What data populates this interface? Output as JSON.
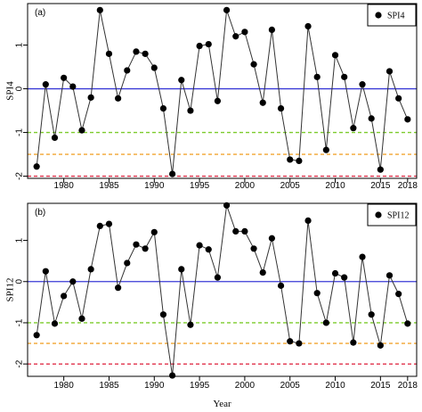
{
  "chart_data": [
    {
      "type": "line",
      "panel": "(a)",
      "ylabel": "SPI4",
      "xlabel": "",
      "legend": "SPI4",
      "legend_position": "top-right",
      "x_ticks": [
        1980,
        1985,
        1990,
        1995,
        2000,
        2005,
        2010,
        2015,
        2018
      ],
      "y_ticks": [
        -2,
        -1,
        0,
        1
      ],
      "xlim": [
        1976,
        2019
      ],
      "ylim": [
        -2.05,
        1.95
      ],
      "reference_lines": [
        {
          "y": 0,
          "color": "#3a3ad6",
          "style": "solid"
        },
        {
          "y": -1,
          "color": "#7ccc2c",
          "style": "dashed"
        },
        {
          "y": -1.5,
          "color": "#f2a530",
          "style": "dashed"
        },
        {
          "y": -2,
          "color": "#e0304a",
          "style": "dashed"
        }
      ],
      "series": [
        {
          "x": [
            1977,
            1978,
            1979,
            1980,
            1981,
            1982,
            1983,
            1984,
            1985,
            1986,
            1987,
            1988,
            1989,
            1990,
            1991,
            1992,
            1993,
            1994,
            1995,
            1996,
            1997,
            1998,
            1999,
            2000,
            2001,
            2002,
            2003,
            2004,
            2005,
            2006,
            2007,
            2008,
            2009,
            2010,
            2011,
            2012,
            2013,
            2014,
            2015,
            2016,
            2017,
            2018
          ],
          "y": [
            -1.78,
            0.1,
            -1.12,
            0.25,
            0.05,
            -0.95,
            -0.2,
            1.8,
            0.8,
            -0.22,
            0.42,
            0.85,
            0.8,
            0.48,
            -0.45,
            -1.95,
            0.2,
            -0.5,
            0.98,
            1.02,
            -0.28,
            1.8,
            1.2,
            1.3,
            0.56,
            -0.32,
            1.35,
            -0.45,
            -1.62,
            -1.65,
            1.43,
            0.27,
            -1.4,
            0.77,
            0.27,
            -0.9,
            0.1,
            -0.68,
            -1.85,
            0.4,
            -0.22,
            -0.7
          ]
        }
      ]
    },
    {
      "type": "line",
      "panel": "(b)",
      "ylabel": "SPI12",
      "xlabel": "Year",
      "legend": "SPI12",
      "legend_position": "top-right",
      "x_ticks": [
        1980,
        1985,
        1990,
        1995,
        2000,
        2005,
        2010,
        2015,
        2018
      ],
      "y_ticks": [
        -2,
        -1,
        0,
        1
      ],
      "xlim": [
        1976,
        2019
      ],
      "ylim": [
        -2.3,
        1.9
      ],
      "reference_lines": [
        {
          "y": 0,
          "color": "#3a3ad6",
          "style": "solid"
        },
        {
          "y": -1,
          "color": "#7ccc2c",
          "style": "dashed"
        },
        {
          "y": -1.5,
          "color": "#f2a530",
          "style": "dashed"
        },
        {
          "y": -2,
          "color": "#e0304a",
          "style": "dashed"
        }
      ],
      "series": [
        {
          "x": [
            1977,
            1978,
            1979,
            1980,
            1981,
            1982,
            1983,
            1984,
            1985,
            1986,
            1987,
            1988,
            1989,
            1990,
            1991,
            1992,
            1993,
            1994,
            1995,
            1996,
            1997,
            1998,
            1999,
            2000,
            2001,
            2002,
            2003,
            2004,
            2005,
            2006,
            2007,
            2008,
            2009,
            2010,
            2011,
            2012,
            2013,
            2014,
            2015,
            2016,
            2017,
            2018
          ],
          "y": [
            -1.3,
            0.25,
            -1.02,
            -0.35,
            0.0,
            -0.9,
            0.3,
            1.35,
            1.4,
            -0.15,
            0.45,
            0.9,
            0.8,
            1.2,
            -0.8,
            -2.28,
            0.3,
            -1.05,
            0.88,
            0.78,
            0.1,
            1.85,
            1.22,
            1.22,
            0.8,
            0.22,
            1.05,
            -0.1,
            -1.45,
            -1.5,
            1.48,
            -0.28,
            -1.0,
            0.2,
            0.1,
            -1.48,
            0.6,
            -0.8,
            -1.55,
            0.15,
            -0.3,
            -1.02
          ]
        }
      ]
    }
  ]
}
